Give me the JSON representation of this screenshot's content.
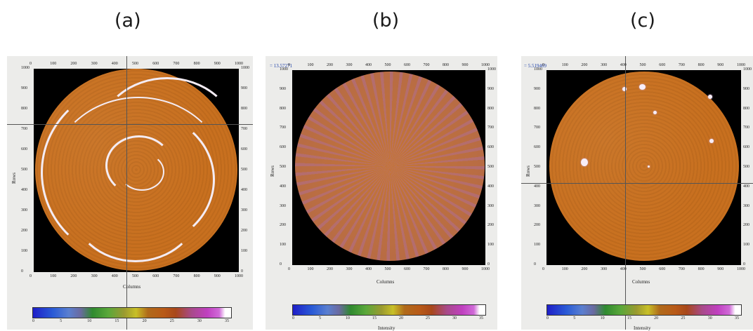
{
  "labels": [
    "(a)",
    "(b)",
    "(c)"
  ],
  "axes": {
    "x_title": "Columns",
    "y_title": "Rows",
    "x_ticks": [
      "0",
      "100",
      "200",
      "300",
      "400",
      "500",
      "600",
      "700",
      "800",
      "900",
      "1000"
    ],
    "y_ticks": [
      "1000",
      "900",
      "800",
      "700",
      "600",
      "500",
      "400",
      "300",
      "200",
      "100",
      "0"
    ],
    "colorbar_ticks": [
      "0",
      "5",
      "10",
      "15",
      "20",
      "25",
      "30",
      "35"
    ],
    "colorbar_title": "Intensity"
  },
  "panels": [
    {
      "readout": ""
    },
    {
      "readout": "= 13.57271"
    },
    {
      "readout": "= 5.519469"
    }
  ],
  "colors": {
    "disc": "#c8701f",
    "frame": "#000000",
    "highlight": "#f4ecf4"
  }
}
